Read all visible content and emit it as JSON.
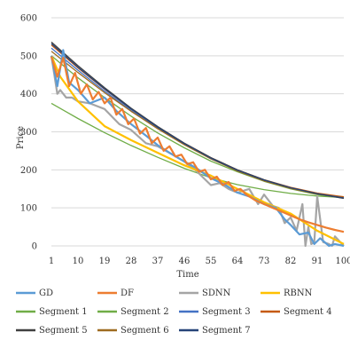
{
  "chart_data": {
    "type": "line",
    "xlabel": "Time",
    "ylabel": "Price",
    "ylim": [
      0,
      600
    ],
    "xlim": [
      1,
      100
    ],
    "y_ticks": [
      0,
      100,
      200,
      300,
      400,
      500,
      600
    ],
    "x_ticks": [
      1,
      10,
      19,
      28,
      37,
      46,
      55,
      64,
      73,
      82,
      91,
      100
    ],
    "grid": "horizontal",
    "legend_position": "bottom",
    "series": [
      {
        "name": "Segment 1",
        "color": "#70ad47",
        "x": [
          1,
          10,
          19,
          28,
          37,
          46,
          55,
          64,
          73,
          82,
          91,
          100
        ],
        "values": [
          375,
          335,
          298,
          264,
          233,
          204,
          179,
          161,
          148,
          138,
          131,
          127
        ]
      },
      {
        "name": "Segment 2",
        "color": "#70ad47",
        "x": [
          1,
          10,
          19,
          28,
          37,
          46,
          55,
          64,
          73,
          82,
          91,
          100
        ],
        "values": [
          500,
          442,
          390,
          341,
          297,
          258,
          223,
          195,
          170,
          150,
          135,
          126
        ]
      },
      {
        "name": "Segment 3",
        "color": "#4472c4",
        "x": [
          1,
          10,
          19,
          28,
          37,
          46,
          55,
          64,
          73,
          82,
          91,
          100
        ],
        "values": [
          520,
          462,
          407,
          356,
          309,
          267,
          229,
          198,
          172,
          152,
          137,
          128
        ]
      },
      {
        "name": "Segment 4",
        "color": "#c55a11",
        "x": [
          1,
          10,
          19,
          28,
          37,
          46,
          55,
          64,
          73,
          82,
          91,
          100
        ],
        "values": [
          528,
          468,
          412,
          360,
          313,
          270,
          232,
          200,
          174,
          154,
          139,
          129
        ]
      },
      {
        "name": "Segment 5",
        "color": "#404040",
        "x": [
          1,
          10,
          19,
          28,
          37,
          46,
          55,
          64,
          73,
          82,
          91,
          100
        ],
        "values": [
          536,
          474,
          416,
          362,
          314,
          270,
          232,
          200,
          174,
          153,
          137,
          125
        ]
      },
      {
        "name": "Segment 6",
        "color": "#9e6b20",
        "x": [
          1,
          10,
          19,
          28,
          37,
          46,
          55,
          64,
          73,
          82,
          91,
          100
        ],
        "values": [
          512,
          456,
          403,
          354,
          308,
          266,
          229,
          197,
          171,
          151,
          136,
          127
        ]
      },
      {
        "name": "Segment 7",
        "color": "#264478",
        "x": [
          1,
          10,
          19,
          28,
          37,
          46,
          55,
          64,
          73,
          82,
          91,
          100
        ],
        "values": [
          532,
          470,
          413,
          360,
          312,
          269,
          231,
          199,
          173,
          153,
          137,
          126
        ]
      },
      {
        "name": "SDNN",
        "color": "#a5a5a5",
        "x": [
          1,
          3,
          4,
          6,
          8,
          10,
          14,
          19,
          24,
          28,
          33,
          37,
          42,
          46,
          50,
          53,
          55,
          58,
          61,
          64,
          68,
          71,
          73,
          76,
          78,
          80,
          82,
          84,
          86,
          87,
          88,
          89,
          90,
          91,
          93,
          95,
          96,
          97,
          100
        ],
        "values": [
          500,
          400,
          410,
          390,
          390,
          380,
          375,
          360,
          320,
          305,
          270,
          262,
          240,
          222,
          198,
          175,
          160,
          165,
          150,
          140,
          150,
          110,
          135,
          105,
          100,
          60,
          75,
          40,
          110,
          0,
          50,
          5,
          10,
          130,
          10,
          5,
          0,
          25,
          0
        ]
      },
      {
        "name": "RBNN",
        "color": "#ffc000",
        "x": [
          1,
          4,
          10,
          19,
          28,
          37,
          46,
          55,
          64,
          73,
          82,
          91,
          100
        ],
        "values": [
          500,
          445,
          380,
          315,
          278,
          245,
          212,
          185,
          150,
          115,
          85,
          40,
          5
        ]
      },
      {
        "name": "GD",
        "color": "#5b9bd5",
        "x": [
          1,
          3,
          5,
          7,
          10,
          14,
          19,
          23,
          28,
          33,
          37,
          41,
          46,
          50,
          55,
          60,
          64,
          68,
          73,
          77,
          80,
          82,
          85,
          88,
          90,
          92,
          95,
          97,
          100
        ],
        "values": [
          500,
          420,
          515,
          430,
          410,
          375,
          390,
          355,
          320,
          290,
          265,
          245,
          222,
          205,
          178,
          160,
          140,
          130,
          110,
          100,
          70,
          55,
          30,
          35,
          5,
          20,
          0,
          5,
          0
        ]
      },
      {
        "name": "DF",
        "color": "#ed7d31",
        "x": [
          1,
          3,
          5,
          7,
          9,
          11,
          13,
          15,
          17,
          19,
          21,
          23,
          25,
          27,
          29,
          31,
          33,
          35,
          37,
          39,
          41,
          43,
          45,
          47,
          49,
          51,
          53,
          55,
          57,
          59,
          61,
          63,
          65,
          67,
          70,
          73,
          76,
          79,
          82,
          85,
          88,
          91,
          94,
          97,
          100
        ],
        "values": [
          498,
          445,
          495,
          420,
          455,
          400,
          425,
          385,
          405,
          375,
          390,
          345,
          360,
          320,
          335,
          295,
          310,
          270,
          285,
          250,
          262,
          235,
          240,
          215,
          220,
          195,
          200,
          175,
          182,
          160,
          168,
          145,
          150,
          135,
          120,
          110,
          100,
          90,
          80,
          70,
          62,
          55,
          48,
          42,
          37
        ]
      }
    ],
    "legend": [
      {
        "name": "GD",
        "color": "#5b9bd5"
      },
      {
        "name": "DF",
        "color": "#ed7d31"
      },
      {
        "name": "SDNN",
        "color": "#a5a5a5"
      },
      {
        "name": "RBNN",
        "color": "#ffc000"
      },
      {
        "name": "Segment 1",
        "color": "#70ad47"
      },
      {
        "name": "Segment 2",
        "color": "#70ad47"
      },
      {
        "name": "Segment 3",
        "color": "#4472c4"
      },
      {
        "name": "Segment 4",
        "color": "#c55a11"
      },
      {
        "name": "Segment 5",
        "color": "#404040"
      },
      {
        "name": "Segment 6",
        "color": "#9e6b20"
      },
      {
        "name": "Segment 7",
        "color": "#264478"
      }
    ]
  }
}
